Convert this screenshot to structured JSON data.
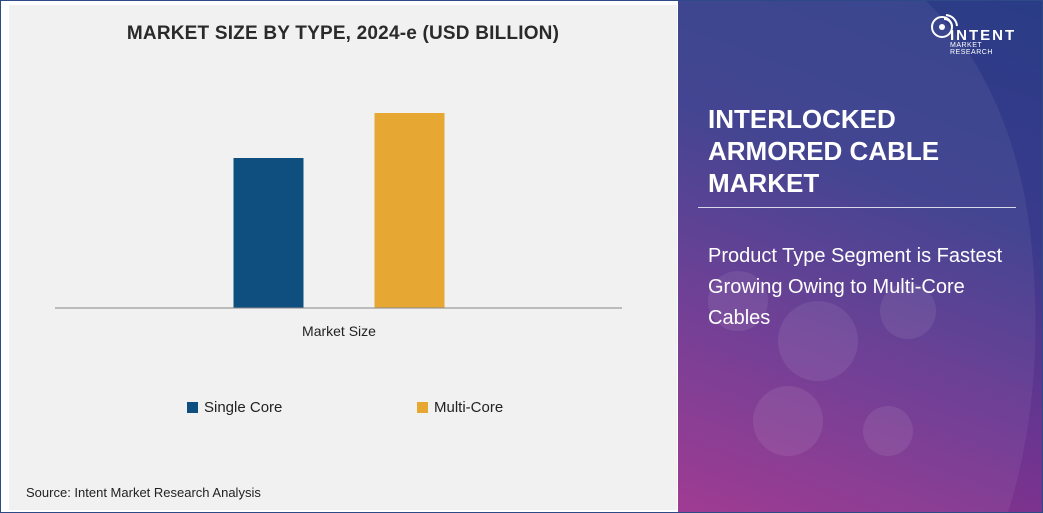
{
  "chart_data": {
    "type": "bar",
    "title": "MARKET SIZE BY TYPE, 2024-e (USD BILLION)",
    "categories": [
      "Market Size"
    ],
    "series": [
      {
        "name": "Single Core",
        "values": [
          1.0
        ],
        "color": "#0e4f7f"
      },
      {
        "name": "Multi-Core",
        "values": [
          1.3
        ],
        "color": "#e6a832"
      }
    ],
    "xlabel": "",
    "ylabel": "",
    "ylim": [
      0,
      1.4
    ],
    "grid": false,
    "legend_position": "bottom"
  },
  "source": "Source: Intent Market Research Analysis",
  "panel": {
    "logo_word": "INTENT",
    "logo_sub": "MARKET RESEARCH",
    "market_title": "INTERLOCKED ARMORED CABLE MARKET",
    "insight": "Product Type Segment is Fastest Growing Owing to Multi-Core Cables"
  },
  "colors": {
    "single_core": "#0e4f7f",
    "multi_core": "#e6a832",
    "panel_top": "#2a3c86",
    "panel_bottom": "#9a2f8c"
  },
  "icons": [
    "intent-logo-icon"
  ]
}
